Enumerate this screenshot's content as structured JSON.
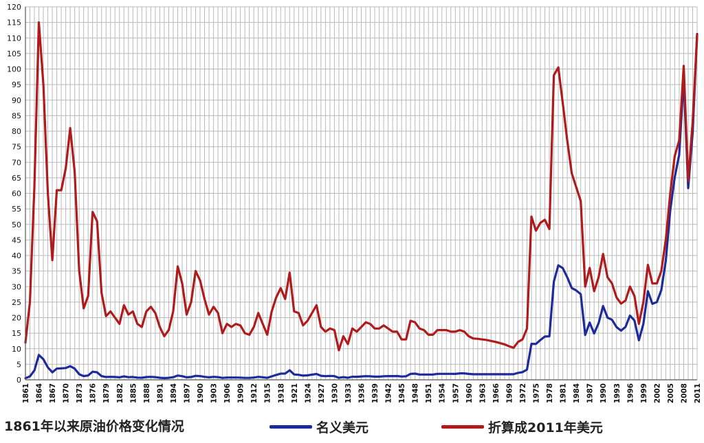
{
  "chart_data": {
    "type": "line",
    "title": "",
    "xlabel": "",
    "ylabel": "",
    "ylim": [
      0,
      120
    ],
    "y_ticks": [
      0,
      5,
      10,
      15,
      20,
      25,
      30,
      35,
      40,
      45,
      50,
      55,
      60,
      65,
      70,
      75,
      80,
      85,
      90,
      95,
      100,
      105,
      110,
      115,
      120
    ],
    "x_tick_labels": [
      "1861",
      "1864",
      "1867",
      "1870",
      "1873",
      "1876",
      "1879",
      "1882",
      "1885",
      "1888",
      "1891",
      "1894",
      "1897",
      "1900",
      "1903",
      "1906",
      "1909",
      "1912",
      "1915",
      "1918",
      "1921",
      "1924",
      "1927",
      "1930",
      "1933",
      "1936",
      "1939",
      "1942",
      "1945",
      "1948",
      "1951",
      "1954",
      "1957",
      "1960",
      "1963",
      "1966",
      "1969",
      "1972",
      "1975",
      "1978",
      "1981",
      "1984",
      "1987",
      "1990",
      "1993",
      "1996",
      "1999",
      "2002",
      "2005",
      "2008",
      "2011"
    ],
    "grid": true,
    "legend_position": "bottom",
    "series": [
      {
        "name": "名义美元",
        "color": "#1c2a9c",
        "points": [
          [
            1861,
            0.5
          ],
          [
            1862,
            1.1
          ],
          [
            1863,
            3
          ],
          [
            1864,
            8
          ],
          [
            1865,
            6.6
          ],
          [
            1866,
            4
          ],
          [
            1867,
            2.4
          ],
          [
            1868,
            3.6
          ],
          [
            1869,
            3.7
          ],
          [
            1870,
            3.8
          ],
          [
            1871,
            4.4
          ],
          [
            1872,
            3.6
          ],
          [
            1873,
            1.8
          ],
          [
            1874,
            1.2
          ],
          [
            1875,
            1.4
          ],
          [
            1876,
            2.6
          ],
          [
            1877,
            2.4
          ],
          [
            1878,
            1.2
          ],
          [
            1879,
            0.9
          ],
          [
            1880,
            0.95
          ],
          [
            1881,
            0.9
          ],
          [
            1882,
            0.8
          ],
          [
            1883,
            1.1
          ],
          [
            1884,
            0.85
          ],
          [
            1885,
            0.9
          ],
          [
            1886,
            0.7
          ],
          [
            1887,
            0.67
          ],
          [
            1888,
            0.88
          ],
          [
            1889,
            0.94
          ],
          [
            1890,
            0.87
          ],
          [
            1891,
            0.67
          ],
          [
            1892,
            0.56
          ],
          [
            1893,
            0.64
          ],
          [
            1894,
            0.84
          ],
          [
            1895,
            1.36
          ],
          [
            1896,
            1.18
          ],
          [
            1897,
            0.79
          ],
          [
            1898,
            0.91
          ],
          [
            1899,
            1.29
          ],
          [
            1900,
            1.19
          ],
          [
            1901,
            0.96
          ],
          [
            1902,
            0.8
          ],
          [
            1903,
            0.94
          ],
          [
            1904,
            0.86
          ],
          [
            1905,
            0.62
          ],
          [
            1906,
            0.73
          ],
          [
            1907,
            0.72
          ],
          [
            1908,
            0.72
          ],
          [
            1909,
            0.7
          ],
          [
            1910,
            0.61
          ],
          [
            1911,
            0.61
          ],
          [
            1912,
            0.74
          ],
          [
            1913,
            0.95
          ],
          [
            1914,
            0.81
          ],
          [
            1915,
            0.64
          ],
          [
            1916,
            1.1
          ],
          [
            1917,
            1.56
          ],
          [
            1918,
            1.98
          ],
          [
            1919,
            2.01
          ],
          [
            1920,
            3.07
          ],
          [
            1921,
            1.73
          ],
          [
            1922,
            1.61
          ],
          [
            1923,
            1.34
          ],
          [
            1924,
            1.43
          ],
          [
            1925,
            1.68
          ],
          [
            1926,
            1.88
          ],
          [
            1927,
            1.3
          ],
          [
            1928,
            1.17
          ],
          [
            1929,
            1.27
          ],
          [
            1930,
            1.19
          ],
          [
            1931,
            0.65
          ],
          [
            1932,
            0.87
          ],
          [
            1933,
            0.67
          ],
          [
            1934,
            1
          ],
          [
            1935,
            0.97
          ],
          [
            1936,
            1.09
          ],
          [
            1937,
            1.18
          ],
          [
            1938,
            1.13
          ],
          [
            1939,
            1.02
          ],
          [
            1940,
            1.02
          ],
          [
            1941,
            1.14
          ],
          [
            1942,
            1.19
          ],
          [
            1943,
            1.2
          ],
          [
            1944,
            1.21
          ],
          [
            1945,
            1.05
          ],
          [
            1946,
            1.12
          ],
          [
            1947,
            1.9
          ],
          [
            1948,
            1.99
          ],
          [
            1949,
            1.71
          ],
          [
            1950,
            1.71
          ],
          [
            1951,
            1.71
          ],
          [
            1952,
            1.71
          ],
          [
            1953,
            1.93
          ],
          [
            1954,
            1.93
          ],
          [
            1955,
            1.93
          ],
          [
            1956,
            1.93
          ],
          [
            1957,
            1.9
          ],
          [
            1958,
            2.08
          ],
          [
            1959,
            2.08
          ],
          [
            1960,
            1.9
          ],
          [
            1961,
            1.8
          ],
          [
            1962,
            1.8
          ],
          [
            1963,
            1.8
          ],
          [
            1964,
            1.8
          ],
          [
            1965,
            1.8
          ],
          [
            1966,
            1.8
          ],
          [
            1967,
            1.8
          ],
          [
            1968,
            1.8
          ],
          [
            1969,
            1.8
          ],
          [
            1970,
            1.8
          ],
          [
            1971,
            2.24
          ],
          [
            1972,
            2.48
          ],
          [
            1973,
            3.29
          ],
          [
            1974,
            11.58
          ],
          [
            1975,
            11.53
          ],
          [
            1976,
            12.8
          ],
          [
            1977,
            13.92
          ],
          [
            1978,
            14.02
          ],
          [
            1979,
            31.61
          ],
          [
            1980,
            36.83
          ],
          [
            1981,
            35.93
          ],
          [
            1982,
            32.97
          ],
          [
            1983,
            29.55
          ],
          [
            1984,
            28.78
          ],
          [
            1985,
            27.56
          ],
          [
            1986,
            14.43
          ],
          [
            1987,
            18.44
          ],
          [
            1988,
            14.92
          ],
          [
            1989,
            18.23
          ],
          [
            1990,
            23.73
          ],
          [
            1991,
            20
          ],
          [
            1992,
            19.32
          ],
          [
            1993,
            16.97
          ],
          [
            1994,
            15.82
          ],
          [
            1995,
            17.02
          ],
          [
            1996,
            20.67
          ],
          [
            1997,
            19.09
          ],
          [
            1998,
            12.72
          ],
          [
            1999,
            17.97
          ],
          [
            2000,
            28.5
          ],
          [
            2001,
            24.44
          ],
          [
            2002,
            25.02
          ],
          [
            2003,
            28.83
          ],
          [
            2004,
            38.27
          ],
          [
            2005,
            54.52
          ],
          [
            2006,
            65.14
          ],
          [
            2007,
            72.39
          ],
          [
            2008,
            97.26
          ],
          [
            2009,
            61.67
          ],
          [
            2010,
            79.5
          ],
          [
            2011,
            111.26
          ]
        ]
      },
      {
        "name": "折算成2011年美元",
        "color": "#b11a1a",
        "points": [
          [
            1861,
            12
          ],
          [
            1862,
            25
          ],
          [
            1863,
            62
          ],
          [
            1864,
            115
          ],
          [
            1865,
            95
          ],
          [
            1866,
            60
          ],
          [
            1867,
            38.5
          ],
          [
            1868,
            61
          ],
          [
            1869,
            61
          ],
          [
            1870,
            68
          ],
          [
            1871,
            81
          ],
          [
            1872,
            67
          ],
          [
            1873,
            35
          ],
          [
            1874,
            23
          ],
          [
            1875,
            27
          ],
          [
            1876,
            54
          ],
          [
            1877,
            51
          ],
          [
            1878,
            28
          ],
          [
            1879,
            20.5
          ],
          [
            1880,
            22
          ],
          [
            1881,
            20
          ],
          [
            1882,
            18
          ],
          [
            1883,
            24
          ],
          [
            1884,
            21
          ],
          [
            1885,
            22
          ],
          [
            1886,
            18
          ],
          [
            1887,
            17
          ],
          [
            1888,
            22
          ],
          [
            1889,
            23.5
          ],
          [
            1890,
            21.5
          ],
          [
            1891,
            17
          ],
          [
            1892,
            14
          ],
          [
            1893,
            16
          ],
          [
            1894,
            22
          ],
          [
            1895,
            36.5
          ],
          [
            1896,
            31
          ],
          [
            1897,
            21
          ],
          [
            1898,
            25
          ],
          [
            1899,
            35
          ],
          [
            1900,
            32
          ],
          [
            1901,
            26
          ],
          [
            1902,
            21
          ],
          [
            1903,
            23.5
          ],
          [
            1904,
            21.5
          ],
          [
            1905,
            15
          ],
          [
            1906,
            18
          ],
          [
            1907,
            17
          ],
          [
            1908,
            18
          ],
          [
            1909,
            17.5
          ],
          [
            1910,
            15
          ],
          [
            1911,
            14.5
          ],
          [
            1912,
            17
          ],
          [
            1913,
            21.5
          ],
          [
            1914,
            18
          ],
          [
            1915,
            14.5
          ],
          [
            1916,
            22
          ],
          [
            1917,
            26.5
          ],
          [
            1918,
            29.5
          ],
          [
            1919,
            26
          ],
          [
            1920,
            34.5
          ],
          [
            1921,
            22
          ],
          [
            1922,
            21.5
          ],
          [
            1923,
            17.5
          ],
          [
            1924,
            19
          ],
          [
            1925,
            21.5
          ],
          [
            1926,
            24
          ],
          [
            1927,
            17
          ],
          [
            1928,
            15.5
          ],
          [
            1929,
            16.5
          ],
          [
            1930,
            16
          ],
          [
            1931,
            9.5
          ],
          [
            1932,
            14
          ],
          [
            1933,
            11.5
          ],
          [
            1934,
            16.5
          ],
          [
            1935,
            15.5
          ],
          [
            1936,
            17
          ],
          [
            1937,
            18.5
          ],
          [
            1938,
            18
          ],
          [
            1939,
            16.5
          ],
          [
            1940,
            16.5
          ],
          [
            1941,
            17.5
          ],
          [
            1942,
            16.5
          ],
          [
            1943,
            15.5
          ],
          [
            1944,
            15.5
          ],
          [
            1945,
            13
          ],
          [
            1946,
            13
          ],
          [
            1947,
            19
          ],
          [
            1948,
            18.5
          ],
          [
            1949,
            16.5
          ],
          [
            1950,
            16
          ],
          [
            1951,
            14.5
          ],
          [
            1952,
            14.5
          ],
          [
            1953,
            16
          ],
          [
            1954,
            16
          ],
          [
            1955,
            16
          ],
          [
            1956,
            15.5
          ],
          [
            1957,
            15.5
          ],
          [
            1958,
            16
          ],
          [
            1959,
            15.5
          ],
          [
            1960,
            14
          ],
          [
            1961,
            13.3
          ],
          [
            1962,
            13.2
          ],
          [
            1963,
            13
          ],
          [
            1964,
            12.8
          ],
          [
            1965,
            12.5
          ],
          [
            1966,
            12.2
          ],
          [
            1967,
            11.8
          ],
          [
            1968,
            11.4
          ],
          [
            1969,
            10.8
          ],
          [
            1970,
            10.3
          ],
          [
            1971,
            12.2
          ],
          [
            1972,
            13
          ],
          [
            1973,
            16.5
          ],
          [
            1974,
            52.5
          ],
          [
            1975,
            48
          ],
          [
            1976,
            50.5
          ],
          [
            1977,
            51.5
          ],
          [
            1978,
            48.5
          ],
          [
            1979,
            98
          ],
          [
            1980,
            100.5
          ],
          [
            1981,
            89
          ],
          [
            1982,
            77
          ],
          [
            1983,
            66.5
          ],
          [
            1984,
            62
          ],
          [
            1985,
            57.5
          ],
          [
            1986,
            30
          ],
          [
            1987,
            36
          ],
          [
            1988,
            28.5
          ],
          [
            1989,
            33
          ],
          [
            1990,
            40.5
          ],
          [
            1991,
            33
          ],
          [
            1992,
            31
          ],
          [
            1993,
            26.5
          ],
          [
            1994,
            24.5
          ],
          [
            1995,
            25.5
          ],
          [
            1996,
            30
          ],
          [
            1997,
            27
          ],
          [
            1998,
            18
          ],
          [
            1999,
            25
          ],
          [
            2000,
            37
          ],
          [
            2001,
            31
          ],
          [
            2002,
            31
          ],
          [
            2003,
            35
          ],
          [
            2004,
            45
          ],
          [
            2005,
            60
          ],
          [
            2006,
            72
          ],
          [
            2007,
            77
          ],
          [
            2008,
            101
          ],
          [
            2009,
            64
          ],
          [
            2010,
            83
          ],
          [
            2011,
            111
          ]
        ]
      }
    ]
  },
  "legend": {
    "caption": "1861年以来原油价格变化情况",
    "items": [
      {
        "label": "名义美元",
        "color": "#1c2a9c"
      },
      {
        "label": "折算成2011年美元",
        "color": "#b11a1a"
      }
    ]
  }
}
